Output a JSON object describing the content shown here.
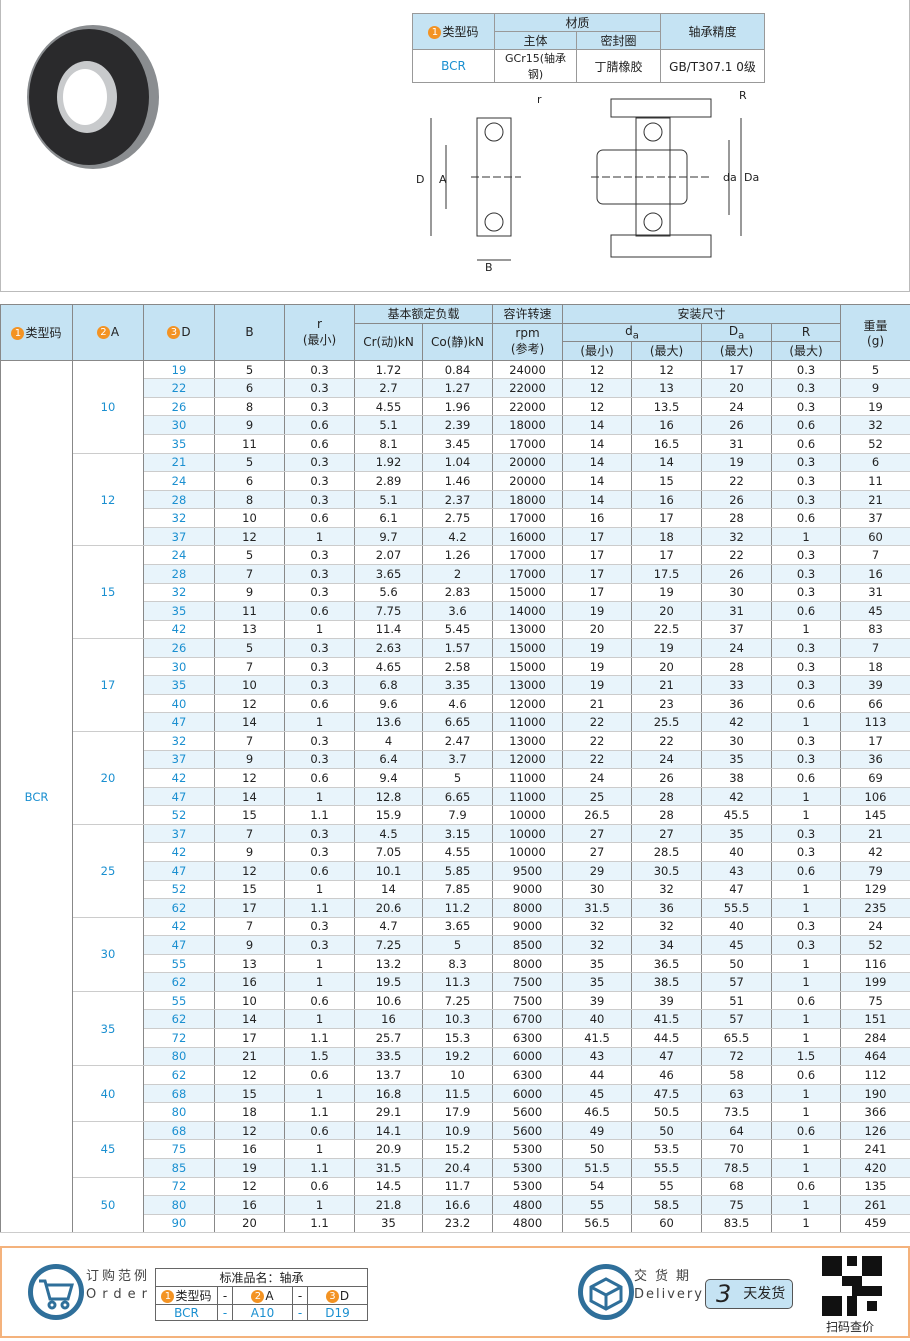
{
  "material_table": {
    "type_code_header": "类型码",
    "material_header": "材质",
    "main_body_header": "主体",
    "seal_header": "密封圈",
    "precision_header": "轴承精度",
    "type_code": "BCR",
    "main_body": "GCr15(轴承钢)",
    "seal": "丁腈橡胶",
    "precision": "GB/T307.1 0级"
  },
  "diagram": {
    "label_r": "r",
    "label_R": "R",
    "label_D": "D",
    "label_A": "A",
    "label_B": "B",
    "label_da": "da",
    "label_Da": "Da",
    "num_D": "3",
    "num_A": "2"
  },
  "table": {
    "headers": {
      "type_code": "类型码",
      "A": "A",
      "D": "D",
      "B": "B",
      "r": "r",
      "r_sub": "(最小)",
      "load": "基本额定负载",
      "cr": "Cr(动)kN",
      "co": "Co(静)kN",
      "speed": "容许转速",
      "speed_unit": "rpm",
      "speed_sub": "(参考)",
      "install": "安装尺寸",
      "da": "d",
      "da_sub": "a",
      "Da": "D",
      "Da_sub": "a",
      "R": "R",
      "min": "(最小)",
      "max": "(最大)",
      "weight": "重量",
      "weight_unit": "(g)"
    },
    "type_code": "BCR",
    "groups": [
      {
        "A": "10",
        "rows": [
          [
            "19",
            "5",
            "0.3",
            "1.72",
            "0.84",
            "24000",
            "12",
            "12",
            "17",
            "0.3",
            "5"
          ],
          [
            "22",
            "6",
            "0.3",
            "2.7",
            "1.27",
            "22000",
            "12",
            "13",
            "20",
            "0.3",
            "9"
          ],
          [
            "26",
            "8",
            "0.3",
            "4.55",
            "1.96",
            "22000",
            "12",
            "13.5",
            "24",
            "0.3",
            "19"
          ],
          [
            "30",
            "9",
            "0.6",
            "5.1",
            "2.39",
            "18000",
            "14",
            "16",
            "26",
            "0.6",
            "32"
          ],
          [
            "35",
            "11",
            "0.6",
            "8.1",
            "3.45",
            "17000",
            "14",
            "16.5",
            "31",
            "0.6",
            "52"
          ]
        ]
      },
      {
        "A": "12",
        "rows": [
          [
            "21",
            "5",
            "0.3",
            "1.92",
            "1.04",
            "20000",
            "14",
            "14",
            "19",
            "0.3",
            "6"
          ],
          [
            "24",
            "6",
            "0.3",
            "2.89",
            "1.46",
            "20000",
            "14",
            "15",
            "22",
            "0.3",
            "11"
          ],
          [
            "28",
            "8",
            "0.3",
            "5.1",
            "2.37",
            "18000",
            "14",
            "16",
            "26",
            "0.3",
            "21"
          ],
          [
            "32",
            "10",
            "0.6",
            "6.1",
            "2.75",
            "17000",
            "16",
            "17",
            "28",
            "0.6",
            "37"
          ],
          [
            "37",
            "12",
            "1",
            "9.7",
            "4.2",
            "16000",
            "17",
            "18",
            "32",
            "1",
            "60"
          ]
        ]
      },
      {
        "A": "15",
        "rows": [
          [
            "24",
            "5",
            "0.3",
            "2.07",
            "1.26",
            "17000",
            "17",
            "17",
            "22",
            "0.3",
            "7"
          ],
          [
            "28",
            "7",
            "0.3",
            "3.65",
            "2",
            "17000",
            "17",
            "17.5",
            "26",
            "0.3",
            "16"
          ],
          [
            "32",
            "9",
            "0.3",
            "5.6",
            "2.83",
            "15000",
            "17",
            "19",
            "30",
            "0.3",
            "31"
          ],
          [
            "35",
            "11",
            "0.6",
            "7.75",
            "3.6",
            "14000",
            "19",
            "20",
            "31",
            "0.6",
            "45"
          ],
          [
            "42",
            "13",
            "1",
            "11.4",
            "5.45",
            "13000",
            "20",
            "22.5",
            "37",
            "1",
            "83"
          ]
        ]
      },
      {
        "A": "17",
        "rows": [
          [
            "26",
            "5",
            "0.3",
            "2.63",
            "1.57",
            "15000",
            "19",
            "19",
            "24",
            "0.3",
            "7"
          ],
          [
            "30",
            "7",
            "0.3",
            "4.65",
            "2.58",
            "15000",
            "19",
            "20",
            "28",
            "0.3",
            "18"
          ],
          [
            "35",
            "10",
            "0.3",
            "6.8",
            "3.35",
            "13000",
            "19",
            "21",
            "33",
            "0.3",
            "39"
          ],
          [
            "40",
            "12",
            "0.6",
            "9.6",
            "4.6",
            "12000",
            "21",
            "23",
            "36",
            "0.6",
            "66"
          ],
          [
            "47",
            "14",
            "1",
            "13.6",
            "6.65",
            "11000",
            "22",
            "25.5",
            "42",
            "1",
            "113"
          ]
        ]
      },
      {
        "A": "20",
        "rows": [
          [
            "32",
            "7",
            "0.3",
            "4",
            "2.47",
            "13000",
            "22",
            "22",
            "30",
            "0.3",
            "17"
          ],
          [
            "37",
            "9",
            "0.3",
            "6.4",
            "3.7",
            "12000",
            "22",
            "24",
            "35",
            "0.3",
            "36"
          ],
          [
            "42",
            "12",
            "0.6",
            "9.4",
            "5",
            "11000",
            "24",
            "26",
            "38",
            "0.6",
            "69"
          ],
          [
            "47",
            "14",
            "1",
            "12.8",
            "6.65",
            "11000",
            "25",
            "28",
            "42",
            "1",
            "106"
          ],
          [
            "52",
            "15",
            "1.1",
            "15.9",
            "7.9",
            "10000",
            "26.5",
            "28",
            "45.5",
            "1",
            "145"
          ]
        ]
      },
      {
        "A": "25",
        "rows": [
          [
            "37",
            "7",
            "0.3",
            "4.5",
            "3.15",
            "10000",
            "27",
            "27",
            "35",
            "0.3",
            "21"
          ],
          [
            "42",
            "9",
            "0.3",
            "7.05",
            "4.55",
            "10000",
            "27",
            "28.5",
            "40",
            "0.3",
            "42"
          ],
          [
            "47",
            "12",
            "0.6",
            "10.1",
            "5.85",
            "9500",
            "29",
            "30.5",
            "43",
            "0.6",
            "79"
          ],
          [
            "52",
            "15",
            "1",
            "14",
            "7.85",
            "9000",
            "30",
            "32",
            "47",
            "1",
            "129"
          ],
          [
            "62",
            "17",
            "1.1",
            "20.6",
            "11.2",
            "8000",
            "31.5",
            "36",
            "55.5",
            "1",
            "235"
          ]
        ]
      },
      {
        "A": "30",
        "rows": [
          [
            "42",
            "7",
            "0.3",
            "4.7",
            "3.65",
            "9000",
            "32",
            "32",
            "40",
            "0.3",
            "24"
          ],
          [
            "47",
            "9",
            "0.3",
            "7.25",
            "5",
            "8500",
            "32",
            "34",
            "45",
            "0.3",
            "52"
          ],
          [
            "55",
            "13",
            "1",
            "13.2",
            "8.3",
            "8000",
            "35",
            "36.5",
            "50",
            "1",
            "116"
          ],
          [
            "62",
            "16",
            "1",
            "19.5",
            "11.3",
            "7500",
            "35",
            "38.5",
            "57",
            "1",
            "199"
          ]
        ]
      },
      {
        "A": "35",
        "rows": [
          [
            "55",
            "10",
            "0.6",
            "10.6",
            "7.25",
            "7500",
            "39",
            "39",
            "51",
            "0.6",
            "75"
          ],
          [
            "62",
            "14",
            "1",
            "16",
            "10.3",
            "6700",
            "40",
            "41.5",
            "57",
            "1",
            "151"
          ],
          [
            "72",
            "17",
            "1.1",
            "25.7",
            "15.3",
            "6300",
            "41.5",
            "44.5",
            "65.5",
            "1",
            "284"
          ],
          [
            "80",
            "21",
            "1.5",
            "33.5",
            "19.2",
            "6000",
            "43",
            "47",
            "72",
            "1.5",
            "464"
          ]
        ]
      },
      {
        "A": "40",
        "rows": [
          [
            "62",
            "12",
            "0.6",
            "13.7",
            "10",
            "6300",
            "44",
            "46",
            "58",
            "0.6",
            "112"
          ],
          [
            "68",
            "15",
            "1",
            "16.8",
            "11.5",
            "6000",
            "45",
            "47.5",
            "63",
            "1",
            "190"
          ],
          [
            "80",
            "18",
            "1.1",
            "29.1",
            "17.9",
            "5600",
            "46.5",
            "50.5",
            "73.5",
            "1",
            "366"
          ]
        ]
      },
      {
        "A": "45",
        "rows": [
          [
            "68",
            "12",
            "0.6",
            "14.1",
            "10.9",
            "5600",
            "49",
            "50",
            "64",
            "0.6",
            "126"
          ],
          [
            "75",
            "16",
            "1",
            "20.9",
            "15.2",
            "5300",
            "50",
            "53.5",
            "70",
            "1",
            "241"
          ],
          [
            "85",
            "19",
            "1.1",
            "31.5",
            "20.4",
            "5300",
            "51.5",
            "55.5",
            "78.5",
            "1",
            "420"
          ]
        ]
      },
      {
        "A": "50",
        "rows": [
          [
            "72",
            "12",
            "0.6",
            "14.5",
            "11.7",
            "5300",
            "54",
            "55",
            "68",
            "0.6",
            "135"
          ],
          [
            "80",
            "16",
            "1",
            "21.8",
            "16.6",
            "4800",
            "55",
            "58.5",
            "75",
            "1",
            "261"
          ],
          [
            "90",
            "20",
            "1.1",
            "35",
            "23.2",
            "4800",
            "56.5",
            "60",
            "83.5",
            "1",
            "459"
          ]
        ]
      }
    ]
  },
  "footer": {
    "order_title": "订购范例",
    "order_en": "Order",
    "std_name": "标准品名：轴承",
    "type_code": "类型码",
    "A": "A",
    "D": "D",
    "dash": "-",
    "ex_type": "BCR",
    "ex_A": "A10",
    "ex_D": "D19",
    "delivery_title": "交货期",
    "delivery_en": "Delivery",
    "days": "3",
    "days_label": "天发货",
    "qr_label": "扫码查价",
    "n1": "1",
    "n2": "2",
    "n3": "3"
  },
  "colors": {
    "header_bg": "#c5e3f3",
    "row_alt": "#e8f4fb",
    "link_blue": "#1a8fd0",
    "badge_orange": "#f39323",
    "footer_border": "#f4b27c"
  }
}
